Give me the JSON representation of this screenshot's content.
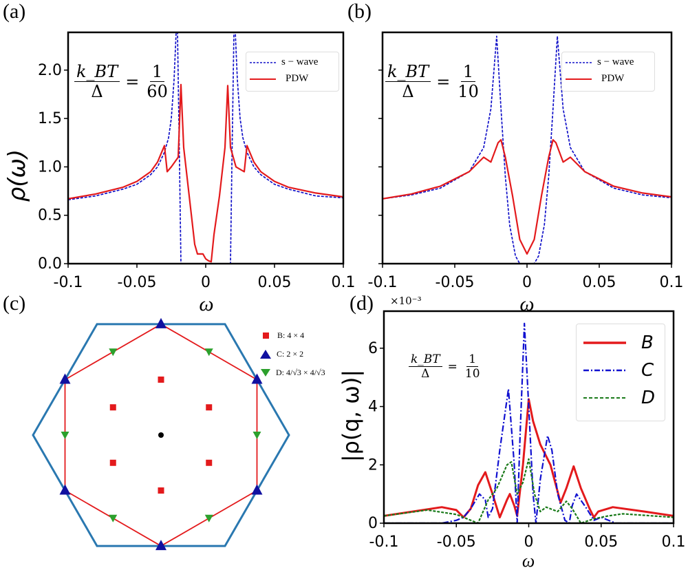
{
  "panels": {
    "a": {
      "label": "(a)",
      "annotation": {
        "num": "k_BT",
        "den": "Δ",
        "eq": "=",
        "val_num": "1",
        "val_den": "60"
      }
    },
    "b": {
      "label": "(b)",
      "annotation": {
        "num": "k_BT",
        "den": "Δ",
        "eq": "=",
        "val_num": "1",
        "val_den": "10"
      }
    },
    "c": {
      "label": "(c)",
      "legend": [
        {
          "marker": "square",
          "color": "#e31a1c",
          "text": "B: 4 × 4"
        },
        {
          "marker": "triangle-up",
          "color": "#1010a0",
          "text": "C: 2 × 2"
        },
        {
          "marker": "triangle-down",
          "color": "#2ca02c",
          "text": "D: 4/√3 × 4/√3"
        }
      ]
    },
    "d": {
      "label": "(d)",
      "multiplier": "×10⁻³",
      "annotation": {
        "num": "k_BT",
        "den": "Δ",
        "eq": "=",
        "val_num": "1",
        "val_den": "10"
      }
    }
  },
  "chart_data": [
    {
      "type": "line",
      "panel": "a",
      "xlabel": "ω",
      "ylabel": "ρ(ω)",
      "xlim": [
        -0.1,
        0.1
      ],
      "ylim": [
        0,
        2.39
      ],
      "xticks": [
        -0.1,
        -0.05,
        0,
        0.05,
        0.1
      ],
      "xtick_labels": [
        "-0.1",
        "-0.05",
        "0",
        "0.05",
        "0.1"
      ],
      "yticks": [
        0,
        0.5,
        1.0,
        1.5,
        2.0
      ],
      "ytick_labels": [
        "0.0",
        "0.5",
        "1.0",
        "1.5",
        "2.0"
      ],
      "legend_position": "top-right",
      "series": [
        {
          "name": "s − wave",
          "color": "#1010c8",
          "style": "dashed",
          "x": [
            -0.1,
            -0.08,
            -0.06,
            -0.05,
            -0.04,
            -0.035,
            -0.03,
            -0.027,
            -0.025,
            -0.023,
            -0.0215,
            -0.0205,
            -0.019,
            -0.018,
            0,
            0.018,
            0.019,
            0.0205,
            0.0215,
            0.023,
            0.025,
            0.027,
            0.03,
            0.035,
            0.04,
            0.05,
            0.06,
            0.08,
            0.1
          ],
          "y": [
            0.66,
            0.7,
            0.77,
            0.82,
            0.92,
            1.0,
            1.15,
            1.3,
            1.5,
            1.9,
            2.39,
            2.39,
            1.0,
            0,
            0,
            0,
            1.0,
            2.39,
            2.39,
            1.9,
            1.5,
            1.3,
            1.15,
            1.0,
            0.92,
            0.82,
            0.77,
            0.7,
            0.68
          ]
        },
        {
          "name": "PDW",
          "color": "#e31a1c",
          "style": "solid",
          "x": [
            -0.1,
            -0.08,
            -0.06,
            -0.05,
            -0.04,
            -0.035,
            -0.03,
            -0.028,
            -0.025,
            -0.02,
            -0.018,
            -0.016,
            -0.012,
            -0.008,
            -0.006,
            -0.002,
            0,
            0.002,
            0.004,
            0.006,
            0.01,
            0.014,
            0.016,
            0.018,
            0.022,
            0.028,
            0.03,
            0.035,
            0.04,
            0.05,
            0.06,
            0.08,
            0.1
          ],
          "y": [
            0.67,
            0.72,
            0.79,
            0.85,
            0.95,
            1.05,
            1.22,
            0.95,
            1.0,
            1.1,
            1.85,
            1.2,
            0.7,
            0.2,
            0.1,
            0.1,
            0.05,
            0.03,
            0.02,
            0.3,
            0.7,
            1.2,
            1.84,
            1.2,
            1.0,
            0.95,
            1.22,
            1.05,
            0.95,
            0.85,
            0.79,
            0.73,
            0.69
          ]
        }
      ]
    },
    {
      "type": "line",
      "panel": "b",
      "xlabel": "ω",
      "ylabel": "",
      "xlim": [
        -0.1,
        0.1
      ],
      "ylim": [
        0,
        2.39
      ],
      "xticks": [
        -0.1,
        -0.05,
        0,
        0.05,
        0.1
      ],
      "xtick_labels": [
        "-0.1",
        "-0.05",
        "0",
        "0.05",
        "0.1"
      ],
      "yticks": [
        0,
        0.5,
        1.0,
        1.5,
        2.0
      ],
      "ytick_labels": [],
      "legend_position": "top-right",
      "series": [
        {
          "name": "s − wave",
          "color": "#1010c8",
          "style": "dashed",
          "x": [
            -0.1,
            -0.08,
            -0.06,
            -0.04,
            -0.03,
            -0.025,
            -0.021,
            -0.018,
            -0.015,
            -0.012,
            -0.008,
            -0.005,
            0,
            0.005,
            0.008,
            0.012,
            0.015,
            0.018,
            0.021,
            0.025,
            0.03,
            0.04,
            0.06,
            0.08,
            0.1
          ],
          "y": [
            0.67,
            0.71,
            0.78,
            0.95,
            1.2,
            1.6,
            2.35,
            1.6,
            0.9,
            0.4,
            0.08,
            0,
            0,
            0,
            0.08,
            0.4,
            0.9,
            1.6,
            2.35,
            1.6,
            1.2,
            0.95,
            0.78,
            0.71,
            0.68
          ]
        },
        {
          "name": "PDW",
          "color": "#e31a1c",
          "style": "solid",
          "x": [
            -0.1,
            -0.08,
            -0.06,
            -0.04,
            -0.03,
            -0.025,
            -0.02,
            -0.018,
            -0.015,
            -0.01,
            -0.005,
            0,
            0.005,
            0.01,
            0.015,
            0.018,
            0.02,
            0.025,
            0.03,
            0.04,
            0.06,
            0.08,
            0.1
          ],
          "y": [
            0.67,
            0.72,
            0.8,
            0.95,
            1.1,
            1.05,
            1.25,
            1.28,
            1.1,
            0.7,
            0.25,
            0.1,
            0.25,
            0.7,
            1.1,
            1.28,
            1.25,
            1.05,
            1.1,
            0.95,
            0.8,
            0.73,
            0.69
          ]
        }
      ]
    },
    {
      "type": "scatter",
      "panel": "c",
      "hexagon": [
        [
          -1,
          1.732
        ],
        [
          1,
          1.732
        ],
        [
          2,
          0
        ],
        [
          1,
          -1.732
        ],
        [
          -1,
          -1.732
        ],
        [
          -2,
          0
        ]
      ],
      "red_path": [
        [
          0,
          1.732
        ],
        [
          1.5,
          0.866
        ],
        [
          1.5,
          -0.866
        ],
        [
          0,
          -1.732
        ],
        [
          -1.5,
          -0.866
        ],
        [
          -1.5,
          0.866
        ]
      ],
      "center": [
        0,
        0
      ],
      "series": [
        {
          "name": "B: 4 × 4",
          "marker": "square",
          "color": "#e31a1c",
          "points": [
            [
              0,
              0.866
            ],
            [
              -0.75,
              0.433
            ],
            [
              0.75,
              0.433
            ],
            [
              -0.75,
              -0.433
            ],
            [
              0.75,
              -0.433
            ],
            [
              0,
              -0.866
            ]
          ]
        },
        {
          "name": "C: 2 × 2",
          "marker": "triangle-up",
          "color": "#1010a0",
          "points": [
            [
              0,
              1.732
            ],
            [
              1.5,
              0.866
            ],
            [
              1.5,
              -0.866
            ],
            [
              0,
              -1.732
            ],
            [
              -1.5,
              -0.866
            ],
            [
              -1.5,
              0.866
            ]
          ]
        },
        {
          "name": "D: 4/√3 × 4/√3",
          "marker": "triangle-down",
          "color": "#2ca02c",
          "points": [
            [
              -0.75,
              1.299
            ],
            [
              0.75,
              1.299
            ],
            [
              1.5,
              0
            ],
            [
              0.75,
              -1.299
            ],
            [
              -0.75,
              -1.299
            ],
            [
              -1.5,
              0
            ]
          ]
        }
      ]
    },
    {
      "type": "line",
      "panel": "d",
      "xlabel": "ω",
      "ylabel": "|ρ(q, ω)|",
      "xlim": [
        -0.1,
        0.1
      ],
      "ylim": [
        0,
        7.27
      ],
      "xticks": [
        -0.1,
        -0.05,
        0,
        0.05,
        0.1
      ],
      "xtick_labels": [
        "-0.1",
        "-0.05",
        "0",
        "0.05",
        "0.1"
      ],
      "yticks": [
        0,
        2,
        4,
        6
      ],
      "ytick_labels": [
        "0",
        "2",
        "4",
        "6"
      ],
      "legend_position": "top-right",
      "series": [
        {
          "name": "B",
          "color": "#e31a1c",
          "style": "solid",
          "x": [
            -0.1,
            -0.06,
            -0.05,
            -0.045,
            -0.04,
            -0.035,
            -0.03,
            -0.025,
            -0.02,
            -0.015,
            -0.013,
            -0.01,
            -0.008,
            -0.004,
            0,
            0.003,
            0.008,
            0.015,
            0.022,
            0.026,
            0.031,
            0.036,
            0.042,
            0.045,
            0.048,
            0.058,
            0.08,
            0.1
          ],
          "y": [
            0.25,
            0.55,
            0.45,
            0.2,
            0.5,
            1.3,
            1.75,
            1.0,
            0.2,
            0.8,
            1.0,
            0.6,
            0.25,
            2.0,
            4.25,
            3.5,
            2.7,
            2.0,
            0.7,
            1.2,
            1.95,
            1.2,
            0.5,
            0.2,
            0.4,
            0.55,
            0.4,
            0.25
          ]
        },
        {
          "name": "C",
          "color": "#1010d0",
          "style": "dashdot",
          "x": [
            -0.1,
            -0.06,
            -0.05,
            -0.045,
            -0.04,
            -0.034,
            -0.03,
            -0.028,
            -0.025,
            -0.02,
            -0.014,
            -0.01,
            -0.008,
            -0.006,
            -0.003,
            0,
            0.003,
            0.005,
            0.008,
            0.013,
            0.016,
            0.02,
            0.025,
            0.028,
            0.03,
            0.033,
            0.04,
            0.045,
            0.05,
            0.06,
            0.1
          ],
          "y": [
            0,
            0,
            0.1,
            0.2,
            0.5,
            1.0,
            0.8,
            0.2,
            0.5,
            2.5,
            4.6,
            2.0,
            0,
            3.0,
            6.85,
            4.0,
            1.0,
            0,
            1.5,
            3.0,
            2.5,
            1.0,
            0.1,
            0,
            0.6,
            1.0,
            0.5,
            0.1,
            0.2,
            0,
            0
          ]
        },
        {
          "name": "D",
          "color": "#1a7a1a",
          "style": "dashed",
          "x": [
            -0.1,
            -0.07,
            -0.05,
            -0.04,
            -0.035,
            -0.028,
            -0.022,
            -0.015,
            -0.012,
            -0.008,
            -0.004,
            0,
            0.004,
            0.008,
            0.012,
            0.02,
            0.026,
            0.03,
            0.036,
            0.045,
            0.055,
            0.065,
            0.1
          ],
          "y": [
            0.25,
            0.45,
            0.3,
            0.1,
            0,
            0.8,
            1.2,
            2.0,
            2.1,
            1.0,
            1.4,
            2.2,
            1.0,
            0.4,
            0.55,
            0.4,
            0.75,
            0.5,
            0,
            0.15,
            0.25,
            0.32,
            0.2
          ]
        }
      ]
    }
  ]
}
